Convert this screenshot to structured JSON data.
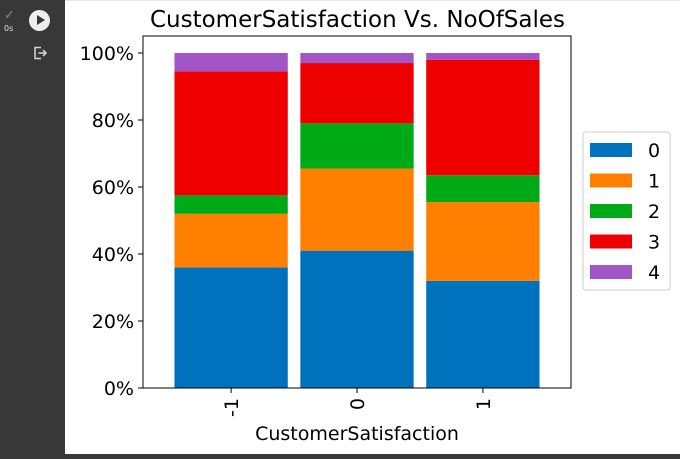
{
  "cell": {
    "run_status": "0s",
    "icons": [
      "check-icon",
      "play-icon",
      "output-icon"
    ]
  },
  "chart_data": {
    "type": "bar",
    "stacked": true,
    "percent": true,
    "title": "CustomerSatisfaction Vs. NoOfSales",
    "xlabel": "CustomerSatisfaction",
    "ylabel": "",
    "categories": [
      "-1",
      "0",
      "1"
    ],
    "ylim": [
      0,
      100
    ],
    "yticks": [
      "0%",
      "20%",
      "40%",
      "60%",
      "80%",
      "100%"
    ],
    "series": [
      {
        "name": "0",
        "color": "#0072bd",
        "values": [
          36,
          41,
          32
        ]
      },
      {
        "name": "1",
        "color": "#ff7f00",
        "values": [
          16,
          24.5,
          23.5
        ]
      },
      {
        "name": "2",
        "color": "#00aa16",
        "values": [
          5.5,
          13.5,
          8
        ]
      },
      {
        "name": "3",
        "color": "#ef0000",
        "values": [
          37,
          18,
          34.5
        ]
      },
      {
        "name": "4",
        "color": "#a155c7",
        "values": [
          5.5,
          3,
          2
        ]
      }
    ],
    "legend_position": "right",
    "grid": false
  }
}
